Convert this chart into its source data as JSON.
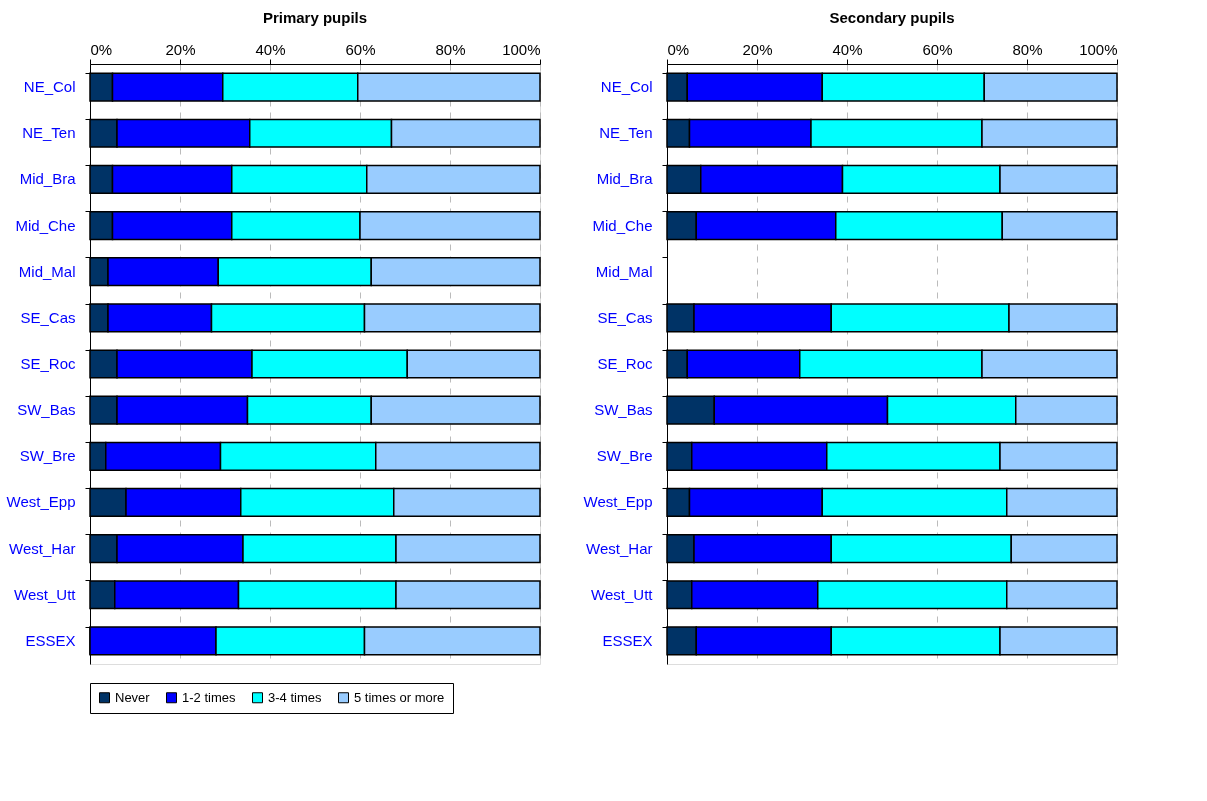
{
  "chart_data": [
    {
      "type": "bar",
      "orientation": "horizontal",
      "stacked": true,
      "title": "Primary pupils",
      "categories": [
        "NE_Col",
        "NE_Ten",
        "Mid_Bra",
        "Mid_Che",
        "Mid_Mal",
        "SE_Cas",
        "SE_Roc",
        "SW_Bas",
        "SW_Bre",
        "West_Epp",
        "West_Har",
        "West_Utt",
        "ESSEX"
      ],
      "series": [
        {
          "name": "Never",
          "color": "#003366",
          "values": [
            5,
            6,
            5,
            5,
            4,
            4,
            6,
            6,
            3.5,
            8,
            6,
            5.5,
            0
          ]
        },
        {
          "name": "1-2 times",
          "color": "#0000ff",
          "values": [
            24.5,
            29.5,
            26.5,
            26.5,
            24.5,
            23,
            30,
            29,
            25.5,
            25.5,
            28,
            27.5,
            28
          ]
        },
        {
          "name": "3-4 times",
          "color": "#00ffff",
          "values": [
            30,
            31.5,
            30,
            28.5,
            34,
            34,
            34.5,
            27.5,
            34.5,
            34,
            34,
            35,
            33
          ]
        },
        {
          "name": "5 times or more",
          "color": "#99ccff",
          "values": [
            40.5,
            33,
            38.5,
            40,
            37.5,
            39,
            29.5,
            37.5,
            36.5,
            32.5,
            32,
            32,
            39
          ]
        }
      ],
      "xlim": [
        0,
        100
      ],
      "xticks": [
        {
          "value": 0,
          "label": "0%"
        },
        {
          "value": 20,
          "label": "20%"
        },
        {
          "value": 40,
          "label": "40%"
        },
        {
          "value": 60,
          "label": "60%"
        },
        {
          "value": 80,
          "label": "80%"
        },
        {
          "value": 100,
          "label": "100%"
        }
      ],
      "grid": "x",
      "legend": "bottom"
    },
    {
      "type": "bar",
      "orientation": "horizontal",
      "stacked": true,
      "title": "Secondary pupils",
      "categories": [
        "NE_Col",
        "NE_Ten",
        "Mid_Bra",
        "Mid_Che",
        "Mid_Mal",
        "SE_Cas",
        "SE_Roc",
        "SW_Bas",
        "SW_Bre",
        "West_Epp",
        "West_Har",
        "West_Utt",
        "ESSEX"
      ],
      "series": [
        {
          "name": "Never",
          "color": "#003366",
          "values": [
            4.5,
            5,
            7.5,
            6.5,
            null,
            6,
            4.5,
            10.5,
            5.5,
            5,
            6,
            5.5,
            6.5
          ]
        },
        {
          "name": "1-2 times",
          "color": "#0000ff",
          "values": [
            30,
            27,
            31.5,
            31,
            null,
            30.5,
            25,
            38.5,
            30,
            29.5,
            30.5,
            28,
            30
          ]
        },
        {
          "name": "3-4 times",
          "color": "#00ffff",
          "values": [
            36,
            38,
            35,
            37,
            null,
            39.5,
            40.5,
            28.5,
            38.5,
            41,
            40,
            42,
            37.5
          ]
        },
        {
          "name": "5 times or more",
          "color": "#99ccff",
          "values": [
            29.5,
            30,
            26,
            25.5,
            null,
            24,
            30,
            22.5,
            26,
            24.5,
            23.5,
            24.5,
            26
          ]
        }
      ],
      "xlim": [
        0,
        100
      ],
      "xticks": [
        {
          "value": 0,
          "label": "0%"
        },
        {
          "value": 20,
          "label": "20%"
        },
        {
          "value": 40,
          "label": "40%"
        },
        {
          "value": 60,
          "label": "60%"
        },
        {
          "value": 80,
          "label": "80%"
        },
        {
          "value": 100,
          "label": "100%"
        }
      ],
      "grid": "x",
      "legend": "bottom"
    }
  ]
}
